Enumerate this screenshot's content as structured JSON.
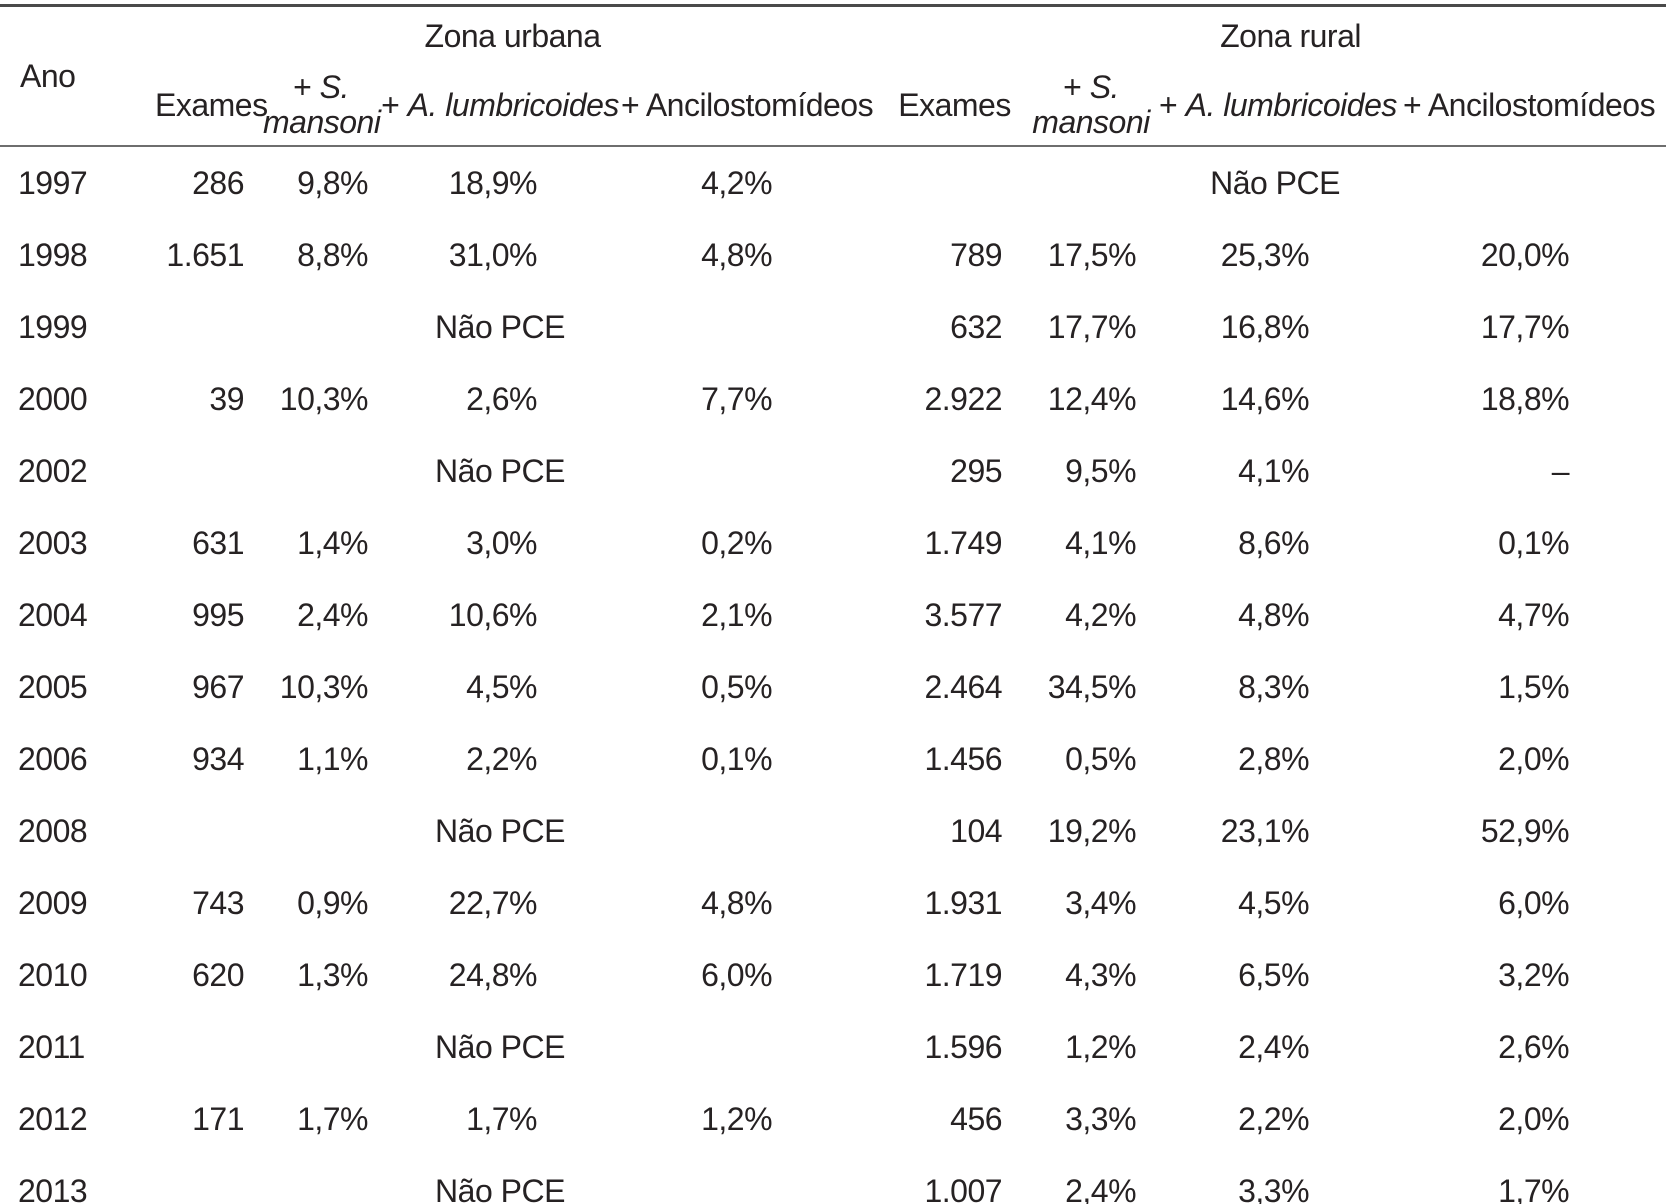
{
  "header": {
    "ano": "Ano",
    "zona_urbana": "Zona urbana",
    "zona_rural": "Zona rural",
    "exames": "Exames",
    "plus": "+",
    "s_abbr": "S.",
    "s_name": "mansoni",
    "a_name": "A. lumbricoides",
    "ancilostomideos": "+ Ancilostomídeos"
  },
  "rows": [
    {
      "year": "1997",
      "urban": {
        "exames": "286",
        "mansoni": "9,8%",
        "lumbricoides": "18,9%",
        "ancilostomideos": "4,2%"
      },
      "rural": {
        "pce": "Não PCE"
      }
    },
    {
      "year": "1998",
      "urban": {
        "exames": "1.651",
        "mansoni": "8,8%",
        "lumbricoides": "31,0%",
        "ancilostomideos": "4,8%"
      },
      "rural": {
        "exames": "789",
        "mansoni": "17,5%",
        "lumbricoides": "25,3%",
        "ancilostomideos": "20,0%"
      }
    },
    {
      "year": "1999",
      "urban": {
        "pce": "Não PCE"
      },
      "rural": {
        "exames": "632",
        "mansoni": "17,7%",
        "lumbricoides": "16,8%",
        "ancilostomideos": "17,7%"
      }
    },
    {
      "year": "2000",
      "urban": {
        "exames": "39",
        "mansoni": "10,3%",
        "lumbricoides": "2,6%",
        "ancilostomideos": "7,7%"
      },
      "rural": {
        "exames": "2.922",
        "mansoni": "12,4%",
        "lumbricoides": "14,6%",
        "ancilostomideos": "18,8%"
      }
    },
    {
      "year": "2002",
      "urban": {
        "pce": "Não PCE"
      },
      "rural": {
        "exames": "295",
        "mansoni": "9,5%",
        "lumbricoides": "4,1%",
        "ancilostomideos": "–"
      }
    },
    {
      "year": "2003",
      "urban": {
        "exames": "631",
        "mansoni": "1,4%",
        "lumbricoides": "3,0%",
        "ancilostomideos": "0,2%"
      },
      "rural": {
        "exames": "1.749",
        "mansoni": "4,1%",
        "lumbricoides": "8,6%",
        "ancilostomideos": "0,1%"
      }
    },
    {
      "year": "2004",
      "urban": {
        "exames": "995",
        "mansoni": "2,4%",
        "lumbricoides": "10,6%",
        "ancilostomideos": "2,1%"
      },
      "rural": {
        "exames": "3.577",
        "mansoni": "4,2%",
        "lumbricoides": "4,8%",
        "ancilostomideos": "4,7%"
      }
    },
    {
      "year": "2005",
      "urban": {
        "exames": "967",
        "mansoni": "10,3%",
        "lumbricoides": "4,5%",
        "ancilostomideos": "0,5%"
      },
      "rural": {
        "exames": "2.464",
        "mansoni": "34,5%",
        "lumbricoides": "8,3%",
        "ancilostomideos": "1,5%"
      }
    },
    {
      "year": "2006",
      "urban": {
        "exames": "934",
        "mansoni": "1,1%",
        "lumbricoides": "2,2%",
        "ancilostomideos": "0,1%"
      },
      "rural": {
        "exames": "1.456",
        "mansoni": "0,5%",
        "lumbricoides": "2,8%",
        "ancilostomideos": "2,0%"
      }
    },
    {
      "year": "2008",
      "urban": {
        "pce": "Não PCE"
      },
      "rural": {
        "exames": "104",
        "mansoni": "19,2%",
        "lumbricoides": "23,1%",
        "ancilostomideos": "52,9%"
      }
    },
    {
      "year": "2009",
      "urban": {
        "exames": "743",
        "mansoni": "0,9%",
        "lumbricoides": "22,7%",
        "ancilostomideos": "4,8%"
      },
      "rural": {
        "exames": "1.931",
        "mansoni": "3,4%",
        "lumbricoides": "4,5%",
        "ancilostomideos": "6,0%"
      }
    },
    {
      "year": "2010",
      "urban": {
        "exames": "620",
        "mansoni": "1,3%",
        "lumbricoides": "24,8%",
        "ancilostomideos": "6,0%"
      },
      "rural": {
        "exames": "1.719",
        "mansoni": "4,3%",
        "lumbricoides": "6,5%",
        "ancilostomideos": "3,2%"
      }
    },
    {
      "year": "2011",
      "urban": {
        "pce": "Não PCE"
      },
      "rural": {
        "exames": "1.596",
        "mansoni": "1,2%",
        "lumbricoides": "2,4%",
        "ancilostomideos": "2,6%"
      }
    },
    {
      "year": "2012",
      "urban": {
        "exames": "171",
        "mansoni": "1,7%",
        "lumbricoides": "1,7%",
        "ancilostomideos": "1,2%"
      },
      "rural": {
        "exames": "456",
        "mansoni": "3,3%",
        "lumbricoides": "2,2%",
        "ancilostomideos": "2,0%"
      }
    },
    {
      "year": "2013",
      "urban": {
        "pce": "Não PCE"
      },
      "rural": {
        "exames": "1.007",
        "mansoni": "2,4%",
        "lumbricoides": "3,3%",
        "ancilostomideos": "1,7%"
      }
    }
  ]
}
